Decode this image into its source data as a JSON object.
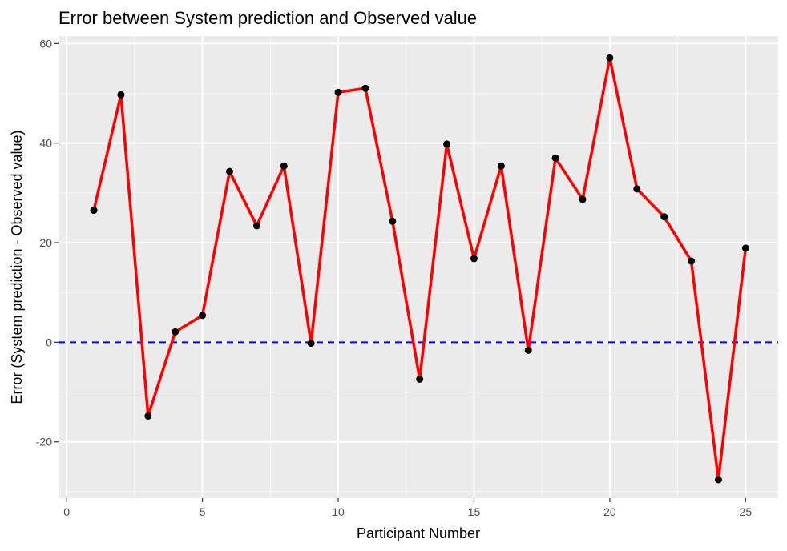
{
  "chart_data": {
    "type": "line",
    "title": "Error between System prediction and Observed value",
    "xlabel": "Participant Number",
    "ylabel": "Error (System prediction - Observed value)",
    "xlim": [
      -0.3,
      26.2
    ],
    "ylim": [
      -31.3,
      61.5
    ],
    "x_ticks": [
      0,
      5,
      10,
      15,
      20,
      25
    ],
    "y_ticks": [
      -20,
      0,
      20,
      40,
      60
    ],
    "x_tick_labels": [
      "0",
      "5",
      "10",
      "15",
      "20",
      "25"
    ],
    "y_tick_labels": [
      "-20",
      "0",
      "20",
      "40",
      "60"
    ],
    "grid": true,
    "reference_line": {
      "y": 0,
      "style": "dashed",
      "color": "#0000ff"
    },
    "series": [
      {
        "line_color": "#ff0000",
        "point_color": "#000000",
        "x": [
          1,
          2,
          3,
          4,
          5,
          6,
          7,
          8,
          9,
          10,
          11,
          12,
          13,
          14,
          15,
          16,
          17,
          18,
          19,
          20,
          21,
          22,
          23,
          24,
          25
        ],
        "values": [
          26.5,
          49.7,
          -14.8,
          2.1,
          5.4,
          34.3,
          23.4,
          35.4,
          -0.2,
          50.2,
          51.0,
          24.3,
          -7.4,
          39.8,
          16.8,
          35.4,
          -1.6,
          37.0,
          28.7,
          57.1,
          30.8,
          25.2,
          16.3,
          -27.6,
          18.9
        ]
      }
    ]
  }
}
